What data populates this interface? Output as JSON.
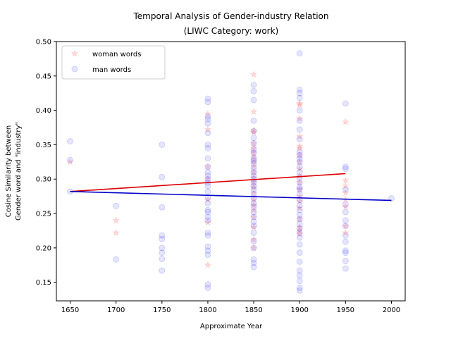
{
  "chart_data": {
    "type": "scatter",
    "title_line1": "Temporal Analysis of Gender-industry Relation",
    "title_line2": "(LIWC Category: work)",
    "xlabel": "Approximate Year",
    "ylabel_line1": "Cosine Similarity between",
    "ylabel_line2": "Gender word and \"industry\"",
    "xlim": [
      1635,
      2015
    ],
    "ylim": [
      0.123,
      0.5
    ],
    "x_ticks": [
      1650,
      1700,
      1750,
      1800,
      1850,
      1900,
      1950,
      2000
    ],
    "y_ticks": [
      0.15,
      0.2,
      0.25,
      0.3,
      0.35,
      0.4,
      0.45,
      0.5
    ],
    "legend": {
      "placement": "top-left"
    },
    "series": [
      {
        "name": "woman words",
        "marker": "star",
        "color": "#ff0000",
        "points": [
          [
            1650,
            0.325
          ],
          [
            1700,
            0.24
          ],
          [
            1700,
            0.222
          ],
          [
            1800,
            0.395
          ],
          [
            1800,
            0.372
          ],
          [
            1800,
            0.318
          ],
          [
            1800,
            0.3
          ],
          [
            1800,
            0.27
          ],
          [
            1800,
            0.237
          ],
          [
            1800,
            0.175
          ],
          [
            1850,
            0.452
          ],
          [
            1850,
            0.398
          ],
          [
            1850,
            0.371
          ],
          [
            1850,
            0.368
          ],
          [
            1850,
            0.352
          ],
          [
            1850,
            0.345
          ],
          [
            1850,
            0.338
          ],
          [
            1850,
            0.332
          ],
          [
            1850,
            0.325
          ],
          [
            1850,
            0.318
          ],
          [
            1850,
            0.31
          ],
          [
            1850,
            0.302
          ],
          [
            1850,
            0.295
          ],
          [
            1850,
            0.288
          ],
          [
            1850,
            0.28
          ],
          [
            1850,
            0.27
          ],
          [
            1850,
            0.262
          ],
          [
            1850,
            0.255
          ],
          [
            1850,
            0.245
          ],
          [
            1850,
            0.23
          ],
          [
            1850,
            0.212
          ],
          [
            1850,
            0.2
          ],
          [
            1900,
            0.41
          ],
          [
            1900,
            0.408
          ],
          [
            1900,
            0.388
          ],
          [
            1900,
            0.362
          ],
          [
            1900,
            0.348
          ],
          [
            1900,
            0.345
          ],
          [
            1900,
            0.335
          ],
          [
            1900,
            0.325
          ],
          [
            1900,
            0.315
          ],
          [
            1900,
            0.305
          ],
          [
            1900,
            0.295
          ],
          [
            1900,
            0.285
          ],
          [
            1900,
            0.275
          ],
          [
            1900,
            0.268
          ],
          [
            1900,
            0.258
          ],
          [
            1900,
            0.242
          ],
          [
            1900,
            0.23
          ],
          [
            1900,
            0.225
          ],
          [
            1900,
            0.22
          ],
          [
            1950,
            0.383
          ],
          [
            1950,
            0.298
          ],
          [
            1950,
            0.29
          ],
          [
            1950,
            0.28
          ],
          [
            1950,
            0.27
          ],
          [
            1950,
            0.26
          ],
          [
            1950,
            0.232
          ],
          [
            1950,
            0.222
          ]
        ]
      },
      {
        "name": "man words",
        "marker": "circle",
        "color": "#0000ff",
        "points": [
          [
            1650,
            0.355
          ],
          [
            1650,
            0.328
          ],
          [
            1650,
            0.282
          ],
          [
            1700,
            0.261
          ],
          [
            1700,
            0.183
          ],
          [
            1750,
            0.35
          ],
          [
            1750,
            0.303
          ],
          [
            1750,
            0.259
          ],
          [
            1750,
            0.218
          ],
          [
            1750,
            0.213
          ],
          [
            1750,
            0.2
          ],
          [
            1750,
            0.193
          ],
          [
            1750,
            0.184
          ],
          [
            1750,
            0.167
          ],
          [
            1800,
            0.417
          ],
          [
            1800,
            0.412
          ],
          [
            1800,
            0.391
          ],
          [
            1800,
            0.387
          ],
          [
            1800,
            0.381
          ],
          [
            1800,
            0.367
          ],
          [
            1800,
            0.35
          ],
          [
            1800,
            0.345
          ],
          [
            1800,
            0.33
          ],
          [
            1800,
            0.318
          ],
          [
            1800,
            0.31
          ],
          [
            1800,
            0.305
          ],
          [
            1800,
            0.3
          ],
          [
            1800,
            0.295
          ],
          [
            1800,
            0.29
          ],
          [
            1800,
            0.282
          ],
          [
            1800,
            0.273
          ],
          [
            1800,
            0.265
          ],
          [
            1800,
            0.255
          ],
          [
            1800,
            0.252
          ],
          [
            1800,
            0.245
          ],
          [
            1800,
            0.24
          ],
          [
            1800,
            0.222
          ],
          [
            1800,
            0.218
          ],
          [
            1800,
            0.202
          ],
          [
            1800,
            0.196
          ],
          [
            1800,
            0.19
          ],
          [
            1800,
            0.147
          ],
          [
            1800,
            0.142
          ],
          [
            1850,
            0.437
          ],
          [
            1850,
            0.428
          ],
          [
            1850,
            0.415
          ],
          [
            1850,
            0.385
          ],
          [
            1850,
            0.37
          ],
          [
            1850,
            0.36
          ],
          [
            1850,
            0.352
          ],
          [
            1850,
            0.343
          ],
          [
            1850,
            0.338
          ],
          [
            1850,
            0.33
          ],
          [
            1850,
            0.327
          ],
          [
            1850,
            0.323
          ],
          [
            1850,
            0.316
          ],
          [
            1850,
            0.31
          ],
          [
            1850,
            0.305
          ],
          [
            1850,
            0.3
          ],
          [
            1850,
            0.295
          ],
          [
            1850,
            0.29
          ],
          [
            1850,
            0.285
          ],
          [
            1850,
            0.278
          ],
          [
            1850,
            0.272
          ],
          [
            1850,
            0.265
          ],
          [
            1850,
            0.26
          ],
          [
            1850,
            0.252
          ],
          [
            1850,
            0.245
          ],
          [
            1850,
            0.238
          ],
          [
            1850,
            0.232
          ],
          [
            1850,
            0.222
          ],
          [
            1850,
            0.21
          ],
          [
            1850,
            0.2
          ],
          [
            1850,
            0.183
          ],
          [
            1850,
            0.178
          ],
          [
            1850,
            0.172
          ],
          [
            1900,
            0.483
          ],
          [
            1900,
            0.43
          ],
          [
            1900,
            0.425
          ],
          [
            1900,
            0.418
          ],
          [
            1900,
            0.4
          ],
          [
            1900,
            0.385
          ],
          [
            1900,
            0.372
          ],
          [
            1900,
            0.358
          ],
          [
            1900,
            0.34
          ],
          [
            1900,
            0.335
          ],
          [
            1900,
            0.33
          ],
          [
            1900,
            0.325
          ],
          [
            1900,
            0.318
          ],
          [
            1900,
            0.31
          ],
          [
            1900,
            0.302
          ],
          [
            1900,
            0.295
          ],
          [
            1900,
            0.288
          ],
          [
            1900,
            0.285
          ],
          [
            1900,
            0.278
          ],
          [
            1900,
            0.27
          ],
          [
            1900,
            0.262
          ],
          [
            1900,
            0.255
          ],
          [
            1900,
            0.248
          ],
          [
            1900,
            0.242
          ],
          [
            1900,
            0.235
          ],
          [
            1900,
            0.228
          ],
          [
            1900,
            0.222
          ],
          [
            1900,
            0.215
          ],
          [
            1900,
            0.205
          ],
          [
            1900,
            0.193
          ],
          [
            1900,
            0.18
          ],
          [
            1900,
            0.167
          ],
          [
            1900,
            0.16
          ],
          [
            1900,
            0.152
          ],
          [
            1900,
            0.142
          ],
          [
            1900,
            0.138
          ],
          [
            1950,
            0.41
          ],
          [
            1950,
            0.318
          ],
          [
            1950,
            0.315
          ],
          [
            1950,
            0.285
          ],
          [
            1950,
            0.263
          ],
          [
            1950,
            0.252
          ],
          [
            1950,
            0.24
          ],
          [
            1950,
            0.232
          ],
          [
            1950,
            0.218
          ],
          [
            1950,
            0.209
          ],
          [
            1950,
            0.196
          ],
          [
            1950,
            0.193
          ],
          [
            1950,
            0.181
          ],
          [
            1950,
            0.17
          ],
          [
            2000,
            0.272
          ]
        ]
      }
    ],
    "trend_lines": [
      {
        "color": "#dd0000",
        "x": [
          1650,
          1950
        ],
        "y": [
          0.282,
          0.308
        ]
      },
      {
        "color": "#0000cc",
        "x": [
          1650,
          2000
        ],
        "y": [
          0.282,
          0.269
        ]
      }
    ]
  }
}
